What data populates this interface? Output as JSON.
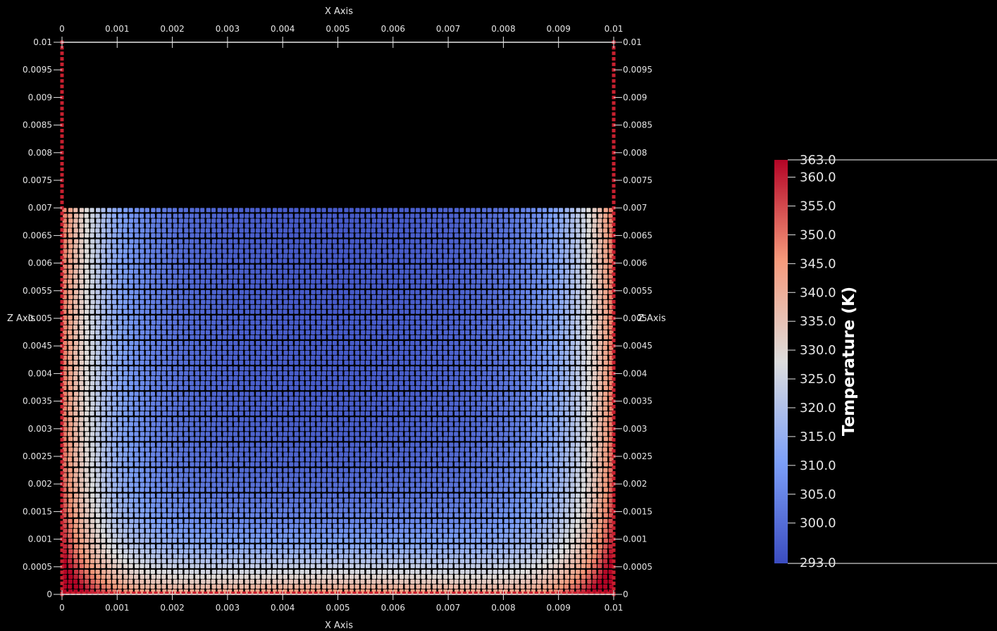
{
  "chart_data": {
    "type": "scatter",
    "description_field": "temperature",
    "axes": {
      "x_title": "X Axis",
      "z_title": "Z Axis",
      "xlim": [
        0,
        0.01
      ],
      "zlim": [
        0,
        0.01
      ],
      "x_ticks": [
        "0",
        "0.001",
        "0.002",
        "0.003",
        "0.004",
        "0.005",
        "0.006",
        "0.007",
        "0.008",
        "0.009",
        "0.01"
      ],
      "z_ticks": [
        "0",
        "0.0005",
        "0.001",
        "0.0015",
        "0.002",
        "0.0025",
        "0.003",
        "0.0035",
        "0.004",
        "0.0045",
        "0.005",
        "0.0055",
        "0.006",
        "0.0065",
        "0.007",
        "0.0075",
        "0.008",
        "0.0085",
        "0.009",
        "0.0095",
        "0.01"
      ]
    },
    "fluid_region": {
      "x": [
        0,
        0.01
      ],
      "z": [
        0,
        0.007
      ]
    },
    "wall_particles_color": "#c8202f",
    "temperature_field": {
      "min": 293.0,
      "max": 363.0,
      "core_min": 296.0,
      "note_unit": "K"
    },
    "colorbar": {
      "title": "Temperature (K)",
      "min_label": "293.0",
      "max_label": "363.0",
      "tick_labels": [
        "300.0",
        "305.0",
        "310.0",
        "315.0",
        "320.0",
        "325.0",
        "330.0",
        "335.0",
        "340.0",
        "345.0",
        "350.0",
        "355.0",
        "360.0"
      ],
      "tick_values": [
        300,
        305,
        310,
        315,
        320,
        325,
        330,
        335,
        340,
        345,
        350,
        355,
        360
      ],
      "colormap": "cool-to-warm",
      "colors": {
        "cold": "#3b4cc0",
        "mid": "#dddddd",
        "hot": "#b40426"
      }
    }
  }
}
